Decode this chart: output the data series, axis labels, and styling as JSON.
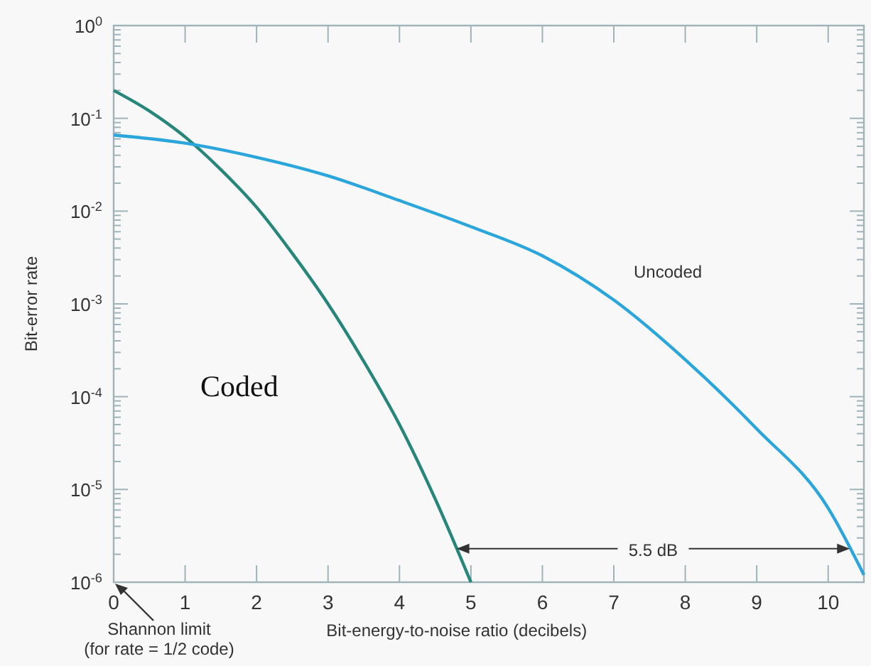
{
  "chart_data": {
    "type": "line",
    "xlabel": "Bit-energy-to-noise ratio (decibels)",
    "ylabel": "Bit-error rate",
    "log": "y",
    "grid": false,
    "marker": "none",
    "line_style": "solid",
    "xlim": [
      0,
      10.5
    ],
    "xticks": [
      0,
      1,
      2,
      3,
      4,
      5,
      6,
      7,
      8,
      9,
      10
    ],
    "ylim": [
      1e-06,
      1
    ],
    "yticks": [
      {
        "value": 1,
        "label": "10$^{0}$"
      },
      {
        "value": 0.1,
        "label": "10$^{-1}$"
      },
      {
        "value": 0.01,
        "label": "10$^{-2}$"
      },
      {
        "value": 0.001,
        "label": "10$^{-3}$"
      },
      {
        "value": 0.0001,
        "label": "10$^{-4}$"
      },
      {
        "value": 1e-05,
        "label": "10$^{-5}$"
      },
      {
        "value": 1e-06,
        "label": "10$^{-6}$"
      }
    ],
    "series": [
      {
        "name": "Coded",
        "color": "#27867a",
        "x": [
          0,
          0.5,
          1,
          1.5,
          2,
          2.5,
          3,
          3.5,
          4,
          4.5,
          5
        ],
        "values": [
          0.2,
          0.12,
          0.063,
          0.028,
          0.011,
          0.0035,
          0.001,
          0.00024,
          5e-05,
          7.9e-06,
          1e-06
        ]
      },
      {
        "name": "Uncoded",
        "color": "#2aa6dc",
        "x": [
          0,
          1,
          2,
          3,
          4,
          5,
          6,
          7,
          8,
          9,
          10,
          10.5
        ],
        "values": [
          0.066,
          0.054,
          0.038,
          0.024,
          0.013,
          0.0068,
          0.0033,
          0.0011,
          0.00025,
          4.5e-05,
          6.3e-06,
          1.2e-06
        ]
      }
    ],
    "annotations": [
      {
        "text": "5.5 dB",
        "x": 4.8,
        "y": 2.3e-06
      },
      "Shannon limit\n(for rate = 1/2 code)"
    ]
  }
}
